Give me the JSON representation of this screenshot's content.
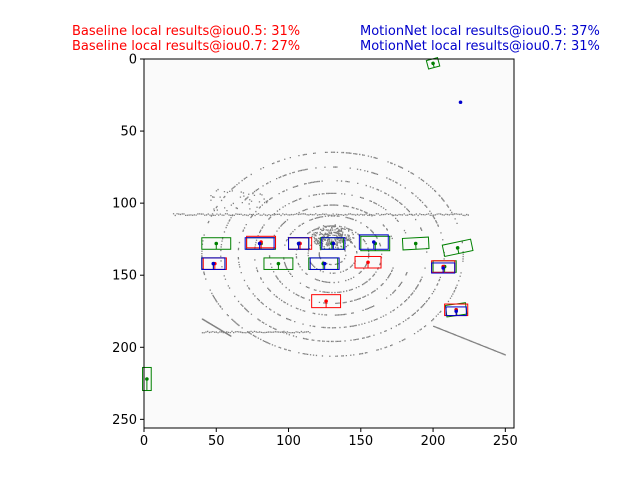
{
  "header": {
    "baseline_line1": "Baseline local results@iou0.5: 31%",
    "baseline_line2": "Baseline local results@iou0.7: 27%",
    "motionnet_line1": "MotionNet local results@iou0.5: 37%",
    "motionnet_line2": "MotionNet local results@iou0.7: 31%",
    "baseline_color": "#ff0000",
    "motionnet_color": "#0000cc"
  },
  "chart_data": {
    "type": "scatter",
    "title": "",
    "xlabel": "",
    "ylabel": "",
    "xlim": [
      0,
      256
    ],
    "ylim": [
      256,
      0
    ],
    "y_inverted": true,
    "grid": false,
    "xticks": [
      0,
      50,
      100,
      150,
      200,
      250
    ],
    "yticks": [
      0,
      50,
      100,
      150,
      200,
      250
    ],
    "background_color": "#fafafa",
    "point_cloud_color": "#808080",
    "box_sets": [
      {
        "name": "",
        "color": "#008000",
        "boxes": [
          {
            "cx": 50,
            "cy": 128,
            "w": 20,
            "h": 8,
            "angle": 0
          },
          {
            "cx": 81,
            "cy": 128,
            "w": 20,
            "h": 8,
            "angle": 0
          },
          {
            "cx": 107,
            "cy": 128,
            "w": 14,
            "h": 8,
            "angle": 0
          },
          {
            "cx": 130,
            "cy": 128,
            "w": 16,
            "h": 8,
            "angle": 0
          },
          {
            "cx": 160,
            "cy": 128,
            "w": 20,
            "h": 10,
            "angle": 0
          },
          {
            "cx": 188,
            "cy": 128,
            "w": 18,
            "h": 8,
            "angle": -3
          },
          {
            "cx": 217,
            "cy": 131,
            "w": 20,
            "h": 8,
            "angle": -12
          },
          {
            "cx": 48,
            "cy": 142,
            "w": 16,
            "h": 8,
            "angle": 0
          },
          {
            "cx": 93,
            "cy": 142,
            "w": 20,
            "h": 8,
            "angle": 0
          },
          {
            "cx": 124,
            "cy": 142,
            "w": 20,
            "h": 8,
            "angle": 0
          },
          {
            "cx": 208,
            "cy": 144,
            "w": 16,
            "h": 8,
            "angle": 0
          },
          {
            "cx": 216,
            "cy": 174,
            "w": 14,
            "h": 8,
            "angle": -8
          },
          {
            "cx": 200,
            "cy": 3,
            "w": 8,
            "h": 6,
            "angle": -15
          },
          {
            "cx": 2,
            "cy": 222,
            "w": 6,
            "h": 16,
            "angle": 0
          }
        ]
      },
      {
        "name": "",
        "color": "#ff0000",
        "boxes": [
          {
            "cx": 81,
            "cy": 127,
            "w": 20,
            "h": 8,
            "angle": 0
          },
          {
            "cx": 108,
            "cy": 128,
            "w": 16,
            "h": 8,
            "angle": 0
          },
          {
            "cx": 155,
            "cy": 141,
            "w": 18,
            "h": 8,
            "angle": 0
          },
          {
            "cx": 126,
            "cy": 168,
            "w": 20,
            "h": 9,
            "angle": 0
          },
          {
            "cx": 216,
            "cy": 174,
            "w": 16,
            "h": 8,
            "angle": 0
          },
          {
            "cx": 49,
            "cy": 142,
            "w": 16,
            "h": 8,
            "angle": 0
          },
          {
            "cx": 207,
            "cy": 144,
            "w": 16,
            "h": 8,
            "angle": 0
          }
        ]
      },
      {
        "name": "",
        "color": "#0000cc",
        "boxes": [
          {
            "cx": 80,
            "cy": 128,
            "w": 20,
            "h": 8,
            "angle": 0
          },
          {
            "cx": 107,
            "cy": 128,
            "w": 14,
            "h": 8,
            "angle": 0
          },
          {
            "cx": 131,
            "cy": 128,
            "w": 16,
            "h": 8,
            "angle": 0
          },
          {
            "cx": 159,
            "cy": 127,
            "w": 20,
            "h": 10,
            "angle": 0
          },
          {
            "cx": 48,
            "cy": 142,
            "w": 16,
            "h": 8,
            "angle": 0
          },
          {
            "cx": 125,
            "cy": 142,
            "w": 20,
            "h": 8,
            "angle": 0
          },
          {
            "cx": 207,
            "cy": 145,
            "w": 16,
            "h": 7,
            "angle": 0
          },
          {
            "cx": 216,
            "cy": 175,
            "w": 14,
            "h": 6,
            "angle": 0
          }
        ]
      }
    ],
    "blue_points": [
      {
        "x": 219,
        "y": 30
      }
    ]
  }
}
